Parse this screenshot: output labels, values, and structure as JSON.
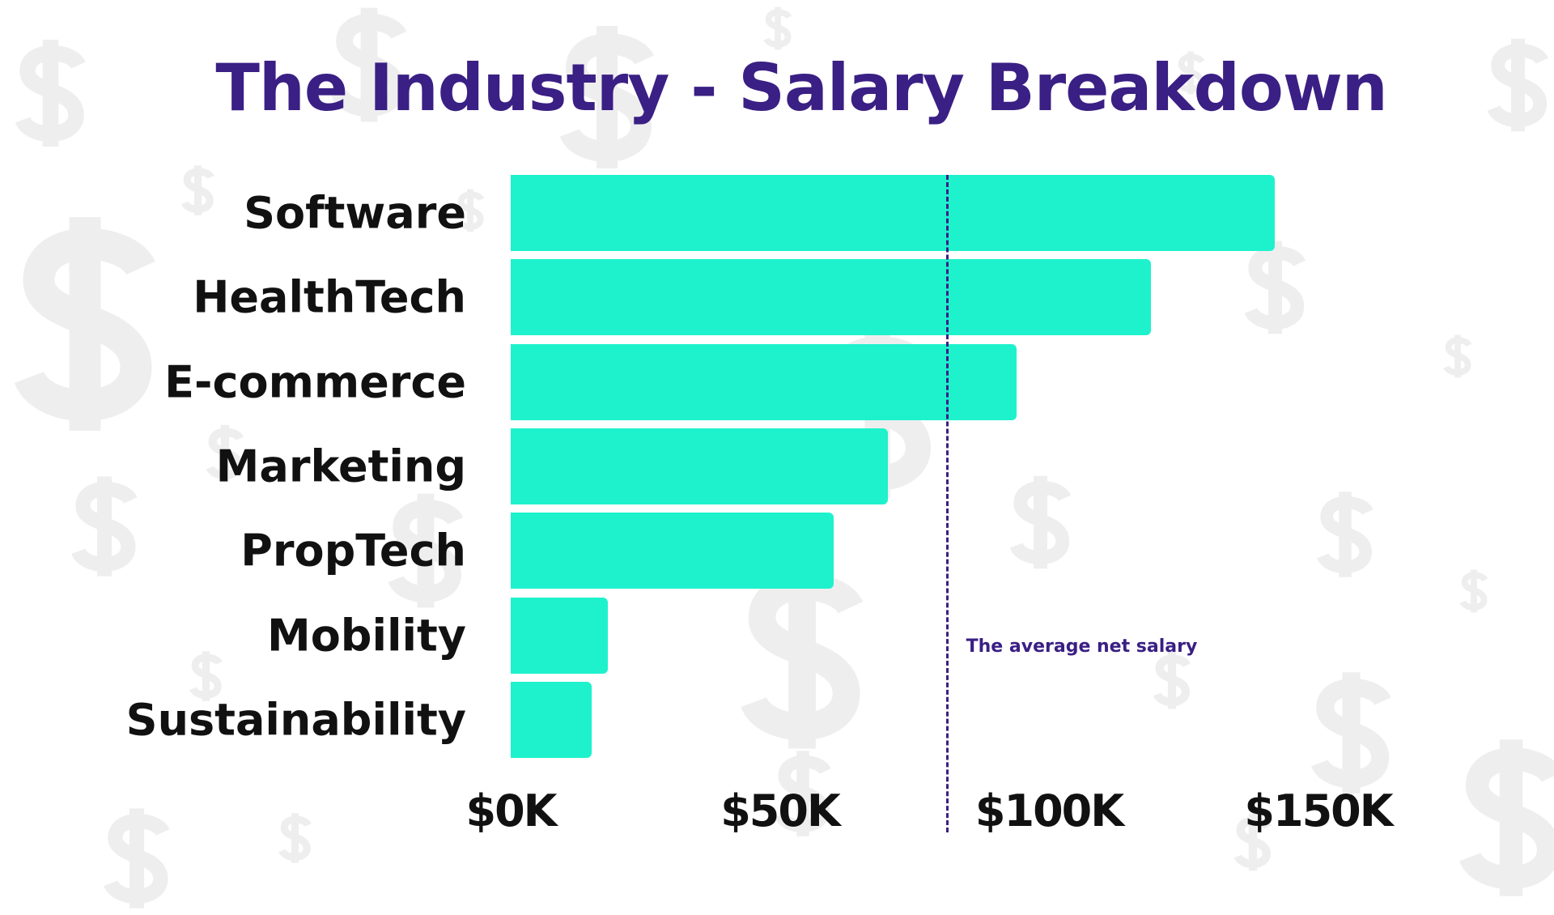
{
  "chart_data": {
    "type": "bar",
    "orientation": "horizontal",
    "title": "The Industry - Salary Breakdown",
    "categories": [
      "Software",
      "HealthTech",
      "E-commerce",
      "Marketing",
      "PropTech",
      "Mobility",
      "Sustainability"
    ],
    "values": [
      142000,
      119000,
      94000,
      70000,
      60000,
      18000,
      15000
    ],
    "xlim": [
      0,
      150000
    ],
    "xticks": [
      0,
      50000,
      100000,
      150000
    ],
    "xtick_labels": [
      "$0K",
      "$50K",
      "$100K",
      "$150K"
    ],
    "xlabel": "",
    "ylabel": "",
    "grid": false,
    "reference_line": {
      "value": 81000,
      "label": "The average net salary",
      "style": "dashed"
    },
    "colors": {
      "bar": "#1ef2cc",
      "title": "#3a1f84",
      "reference_line": "#3a1f84"
    }
  }
}
